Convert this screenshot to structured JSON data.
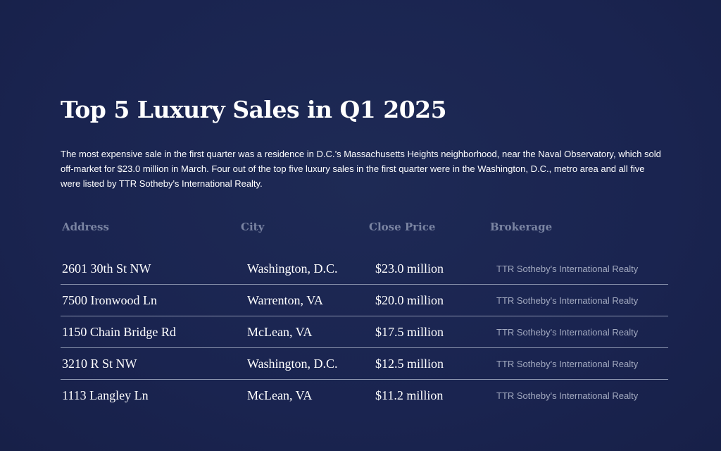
{
  "title": "Top 5 Luxury Sales in Q1 2025",
  "intro": "The most expensive sale in the first quarter was a residence in D.C.’s Massachusetts Heights neighborhood, near the Naval Observatory, which sold off-market for $23.0 million in March. Four out of the top five luxury sales in the first quarter were in the Washington, D.C., metro area and all five were listed by TTR Sotheby's International Realty.",
  "table": {
    "headers": [
      "Address",
      "City",
      "Close Price",
      "Brokerage"
    ],
    "rows": [
      [
        "2601 30th St NW",
        "Washington, D.C.",
        "$23.0 million",
        "TTR Sotheby's International Realty"
      ],
      [
        "7500 Ironwood Ln",
        "Warrenton, VA",
        "$20.0 million",
        "TTR Sotheby's International Realty"
      ],
      [
        "1150 Chain Bridge Rd",
        "McLean, VA",
        "$17.5 million",
        "TTR Sotheby's International Realty"
      ],
      [
        "3210 R St NW",
        "Washington, D.C.",
        "$12.5 million",
        "TTR Sotheby's International Realty"
      ],
      [
        "1113 Langley Ln",
        "McLean, VA",
        "$11.2 million",
        "TTR Sotheby's International Realty"
      ]
    ]
  }
}
